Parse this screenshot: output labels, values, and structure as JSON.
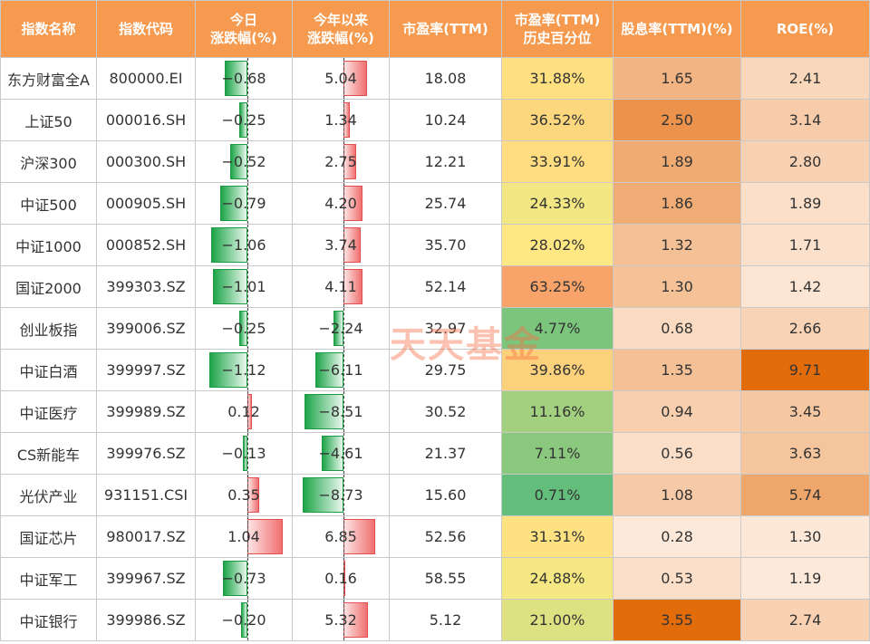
{
  "headers": {
    "name": "指数名称",
    "code": "指数代码",
    "day_change": [
      "今日",
      "涨跌幅(%)"
    ],
    "ytd_change": [
      "今年以来",
      "涨跌幅(%)"
    ],
    "pe": "市盈率(TTM)",
    "pe_pct": [
      "市盈率(TTM)",
      "历史百分位"
    ],
    "dividend": "股息率(TTM)(%)",
    "roe": "ROE(%)"
  },
  "watermark": "天天基金",
  "rows": [
    {
      "name": "东方财富全A",
      "code": "800000.EI",
      "day": "-0.68",
      "ytd": "5.04",
      "pe": "18.08",
      "pe_pct": "31.88%",
      "div": "1.65",
      "roe": "2.41"
    },
    {
      "name": "上证50",
      "code": "000016.SH",
      "day": "-0.25",
      "ytd": "1.34",
      "pe": "10.24",
      "pe_pct": "36.52%",
      "div": "2.50",
      "roe": "3.14"
    },
    {
      "name": "沪深300",
      "code": "000300.SH",
      "day": "-0.52",
      "ytd": "2.75",
      "pe": "12.21",
      "pe_pct": "33.91%",
      "div": "1.89",
      "roe": "2.80"
    },
    {
      "name": "中证500",
      "code": "000905.SH",
      "day": "-0.79",
      "ytd": "4.20",
      "pe": "25.74",
      "pe_pct": "24.33%",
      "div": "1.86",
      "roe": "1.89"
    },
    {
      "name": "中证1000",
      "code": "000852.SH",
      "day": "-1.06",
      "ytd": "3.74",
      "pe": "35.70",
      "pe_pct": "28.02%",
      "div": "1.32",
      "roe": "1.71"
    },
    {
      "name": "国证2000",
      "code": "399303.SZ",
      "day": "-1.01",
      "ytd": "4.11",
      "pe": "52.14",
      "pe_pct": "63.25%",
      "div": "1.30",
      "roe": "1.42"
    },
    {
      "name": "创业板指",
      "code": "399006.SZ",
      "day": "-0.25",
      "ytd": "-2.24",
      "pe": "32.97",
      "pe_pct": "4.77%",
      "div": "0.68",
      "roe": "2.66"
    },
    {
      "name": "中证白酒",
      "code": "399997.SZ",
      "day": "-1.12",
      "ytd": "-6.11",
      "pe": "29.75",
      "pe_pct": "39.86%",
      "div": "1.35",
      "roe": "9.71"
    },
    {
      "name": "中证医疗",
      "code": "399989.SZ",
      "day": "0.12",
      "ytd": "-8.51",
      "pe": "30.52",
      "pe_pct": "11.16%",
      "div": "0.94",
      "roe": "3.45"
    },
    {
      "name": "CS新能车",
      "code": "399976.SZ",
      "day": "-0.13",
      "ytd": "-4.61",
      "pe": "21.37",
      "pe_pct": "7.11%",
      "div": "0.56",
      "roe": "3.63"
    },
    {
      "name": "光伏产业",
      "code": "931151.CSI",
      "day": "0.35",
      "ytd": "-8.73",
      "pe": "15.60",
      "pe_pct": "0.71%",
      "div": "1.08",
      "roe": "5.74"
    },
    {
      "name": "国证芯片",
      "code": "980017.SZ",
      "day": "1.04",
      "ytd": "6.85",
      "pe": "52.56",
      "pe_pct": "31.31%",
      "div": "0.28",
      "roe": "1.30"
    },
    {
      "name": "中证军工",
      "code": "399967.SZ",
      "day": "-0.73",
      "ytd": "0.16",
      "pe": "58.55",
      "pe_pct": "24.88%",
      "div": "0.53",
      "roe": "1.19"
    },
    {
      "name": "中证银行",
      "code": "399986.SZ",
      "day": "-0.20",
      "ytd": "5.32",
      "pe": "5.12",
      "pe_pct": "21.00%",
      "div": "3.55",
      "roe": "2.74"
    }
  ],
  "colors": {
    "header_bg": "#f59a4e",
    "pct_low": "#63be7b",
    "pct_mid": "#ffeb84",
    "pct_high": "#f8a36a",
    "div_roe_low": "#fde9d9",
    "div_roe_high": "#e26b0a",
    "bar_negative": "#1ea54a",
    "bar_positive": "#f07070"
  }
}
